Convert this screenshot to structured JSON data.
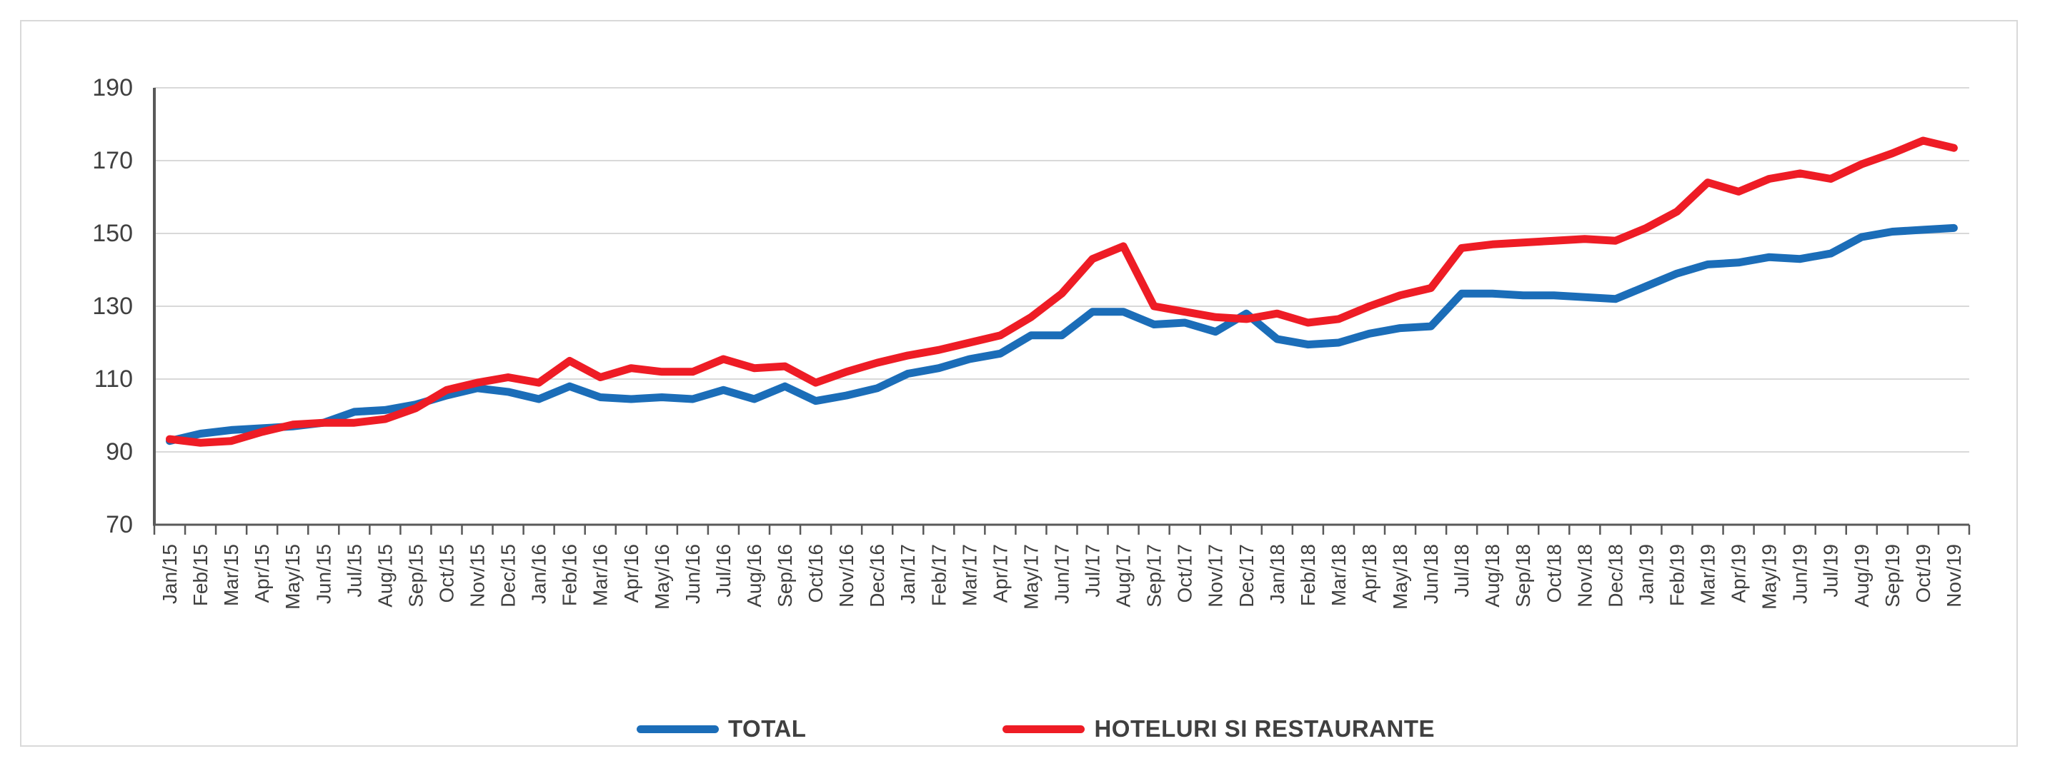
{
  "chart_data": {
    "type": "line",
    "title": "",
    "xlabel": "",
    "ylabel": "",
    "ylim": [
      70,
      190
    ],
    "yticks": [
      70,
      90,
      110,
      130,
      150,
      170,
      190
    ],
    "grid": true,
    "legend_position": "bottom-center",
    "categories": [
      "Jan/15",
      "Feb/15",
      "Mar/15",
      "Apr/15",
      "May/15",
      "Jun/15",
      "Jul/15",
      "Aug/15",
      "Sep/15",
      "Oct/15",
      "Nov/15",
      "Dec/15",
      "Jan/16",
      "Feb/16",
      "Mar/16",
      "Apr/16",
      "May/16",
      "Jun/16",
      "Jul/16",
      "Aug/16",
      "Sep/16",
      "Oct/16",
      "Nov/16",
      "Dec/16",
      "Jan/17",
      "Feb/17",
      "Mar/17",
      "Apr/17",
      "May/17",
      "Jun/17",
      "Jul/17",
      "Aug/17",
      "Sep/17",
      "Oct/17",
      "Nov/17",
      "Dec/17",
      "Jan/18",
      "Feb/18",
      "Mar/18",
      "Apr/18",
      "May/18",
      "Jun/18",
      "Jul/18",
      "Aug/18",
      "Sep/18",
      "Oct/18",
      "Nov/18",
      "Dec/18",
      "Jan/19",
      "Feb/19",
      "Mar/19",
      "Apr/19",
      "May/19",
      "Jun/19",
      "Jul/19",
      "Aug/19",
      "Sep/19",
      "Oct/19",
      "Nov/19"
    ],
    "series": [
      {
        "name": "TOTAL",
        "color": "#1B6DB8",
        "values": [
          93,
          95,
          96,
          96.5,
          97,
          98,
          101,
          101.5,
          103,
          105.5,
          107.5,
          106.5,
          104.5,
          108,
          105,
          104.5,
          105,
          104.5,
          107,
          104.5,
          108,
          104,
          105.5,
          107.5,
          111.5,
          113,
          115.5,
          117,
          122,
          122,
          128.5,
          128.5,
          125,
          125.5,
          123,
          128,
          121,
          119.5,
          120,
          122.5,
          124,
          124.5,
          133.5,
          133.5,
          133,
          133,
          132.5,
          132,
          135.5,
          139,
          141.5,
          142,
          143.5,
          143,
          144.5,
          149,
          150.5,
          151,
          151.5
        ]
      },
      {
        "name": "HOTELURI SI RESTAURANTE",
        "color": "#EE1C25",
        "values": [
          93.5,
          92.5,
          93,
          95.5,
          97.5,
          98,
          98,
          99,
          102,
          107,
          109,
          110.5,
          109,
          115,
          110.5,
          113,
          112,
          112,
          115.5,
          113,
          113.5,
          109,
          112,
          114.5,
          116.5,
          118,
          120,
          122,
          127,
          133.5,
          143,
          146.5,
          130,
          128.5,
          127,
          126.5,
          128,
          125.5,
          126.5,
          130,
          133,
          135,
          146,
          147,
          147.5,
          148,
          148.5,
          148,
          151.5,
          156,
          164,
          161.5,
          165,
          166.5,
          165,
          169,
          172,
          175.5,
          173.5
        ]
      }
    ],
    "colors": {
      "gridline": "#D9D9D9",
      "axis": "#595959",
      "tick_label": "#404040",
      "legend_text": "#404040",
      "frame_border": "#D9D9D9",
      "background": "#FFFFFF"
    }
  }
}
